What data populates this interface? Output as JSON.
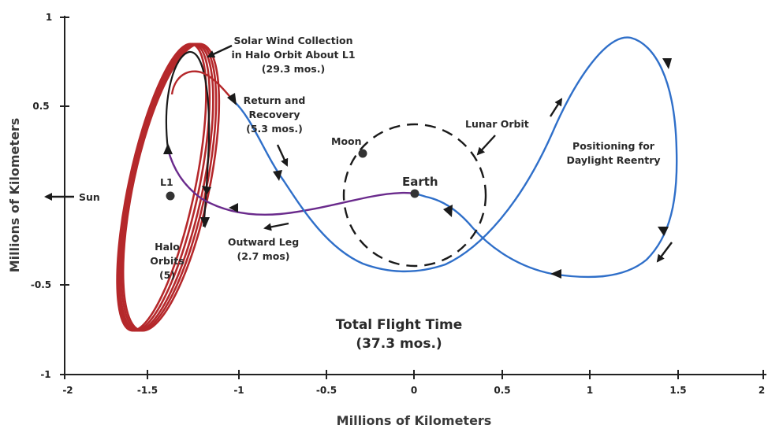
{
  "axes": {
    "x_title": "Millions of Kilometers",
    "y_title": "Millions of Kilometers",
    "x_ticks": [
      "-2",
      "-1.5",
      "-1",
      "-0.5",
      "0",
      "0.5",
      "1",
      "1.5",
      "2"
    ],
    "y_ticks": [
      "1",
      "0.5",
      "-0.5",
      "-1"
    ]
  },
  "labels": {
    "sun": "Sun",
    "l1": "L1",
    "earth": "Earth",
    "moon": "Moon",
    "lunar_orbit": "Lunar Orbit",
    "solar_wind": [
      "Solar Wind Collection",
      "in Halo Orbit About L1",
      "(29.3 mos.)"
    ],
    "return": [
      "Return and",
      "Recovery",
      "(5.3 mos.)"
    ],
    "positioning": [
      "Positioning for",
      "Daylight Reentry"
    ],
    "outward": [
      "Outward Leg",
      "(2.7 mos)"
    ],
    "halo": [
      "Halo",
      "Orbits",
      "(5)"
    ],
    "total": [
      "Total Flight Time",
      "(37.3 mos.)"
    ]
  },
  "colors": {
    "halo": "#b5282b",
    "outward": "#6a2a8c",
    "return": "#2f6fc9",
    "black_path": "#1a1a1a",
    "axis": "#222222"
  }
}
